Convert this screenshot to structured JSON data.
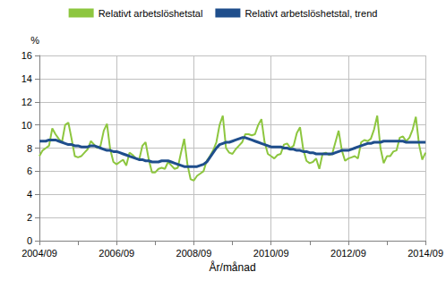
{
  "chart_data": {
    "type": "line",
    "xlabel": "År/månad",
    "ylabel": "%",
    "categories": [
      "2004/09",
      null,
      null,
      null,
      null,
      null,
      null,
      null,
      null,
      null,
      null,
      null,
      null,
      null,
      null,
      null,
      null,
      null,
      null,
      null,
      null,
      null,
      null,
      null,
      "2006/09",
      null,
      null,
      null,
      null,
      null,
      null,
      null,
      null,
      null,
      null,
      null,
      null,
      null,
      null,
      null,
      null,
      null,
      null,
      null,
      null,
      null,
      null,
      null,
      "2008/09",
      null,
      null,
      null,
      null,
      null,
      null,
      null,
      null,
      null,
      null,
      null,
      null,
      null,
      null,
      null,
      null,
      null,
      null,
      null,
      null,
      null,
      null,
      null,
      "2010/09",
      null,
      null,
      null,
      null,
      null,
      null,
      null,
      null,
      null,
      null,
      null,
      null,
      null,
      null,
      null,
      null,
      null,
      null,
      null,
      null,
      null,
      null,
      null,
      "2012/09",
      null,
      null,
      null,
      null,
      null,
      null,
      null,
      null,
      null,
      null,
      null,
      null,
      null,
      null,
      null,
      null,
      null,
      null,
      null,
      null,
      null,
      null,
      null,
      "2014/09"
    ],
    "series": [
      {
        "name": "Relativt arbetslöshetstal",
        "color": "#8dc63f",
        "values": [
          7.3,
          7.8,
          8.0,
          8.2,
          9.7,
          9.2,
          8.8,
          8.5,
          10.0,
          10.2,
          8.8,
          7.3,
          7.2,
          7.3,
          7.6,
          7.9,
          8.6,
          8.3,
          8.0,
          8.2,
          9.5,
          10.1,
          7.9,
          6.8,
          6.6,
          6.8,
          7.0,
          6.5,
          7.6,
          7.4,
          7.1,
          7.0,
          8.2,
          8.5,
          7.0,
          5.9,
          5.9,
          6.2,
          6.3,
          6.2,
          6.8,
          6.5,
          6.2,
          6.3,
          7.6,
          8.8,
          6.6,
          5.3,
          5.2,
          5.6,
          5.8,
          6.0,
          6.9,
          7.3,
          7.8,
          8.5,
          10.0,
          10.8,
          8.0,
          7.6,
          7.5,
          7.9,
          8.2,
          8.5,
          9.2,
          9.2,
          9.1,
          9.2,
          10.0,
          10.5,
          8.5,
          7.5,
          7.3,
          7.1,
          7.4,
          7.5,
          8.3,
          8.4,
          8.0,
          8.2,
          9.3,
          9.8,
          7.9,
          6.9,
          6.7,
          6.8,
          7.1,
          6.2,
          7.5,
          7.6,
          7.4,
          7.5,
          8.5,
          9.5,
          7.8,
          6.9,
          7.1,
          7.2,
          7.3,
          7.1,
          8.5,
          8.7,
          8.6,
          8.8,
          9.6,
          10.8,
          8.0,
          6.7,
          7.3,
          7.3,
          7.7,
          7.8,
          8.9,
          9.0,
          8.6,
          8.9,
          9.6,
          10.7,
          8.3,
          7.0,
          7.6
        ]
      },
      {
        "name": "Relativt arbetslöshetstal, trend",
        "color": "#1f4e8c",
        "values": [
          8.6,
          8.6,
          8.6,
          8.7,
          8.7,
          8.7,
          8.6,
          8.5,
          8.4,
          8.3,
          8.3,
          8.2,
          8.2,
          8.1,
          8.1,
          8.1,
          8.2,
          8.2,
          8.1,
          8.0,
          7.9,
          7.8,
          7.8,
          7.7,
          7.7,
          7.6,
          7.5,
          7.4,
          7.3,
          7.2,
          7.1,
          7.0,
          7.0,
          6.9,
          6.9,
          6.8,
          6.8,
          6.8,
          6.9,
          6.9,
          6.9,
          6.8,
          6.7,
          6.6,
          6.5,
          6.4,
          6.4,
          6.4,
          6.4,
          6.4,
          6.5,
          6.6,
          6.8,
          7.2,
          7.6,
          8.0,
          8.3,
          8.4,
          8.5,
          8.5,
          8.6,
          8.7,
          8.8,
          8.9,
          8.9,
          8.8,
          8.7,
          8.6,
          8.5,
          8.4,
          8.3,
          8.2,
          8.1,
          8.1,
          8.1,
          8.1,
          8.0,
          8.0,
          7.9,
          7.9,
          7.8,
          7.8,
          7.7,
          7.7,
          7.6,
          7.6,
          7.5,
          7.5,
          7.5,
          7.5,
          7.5,
          7.5,
          7.6,
          7.7,
          7.8,
          7.8,
          7.8,
          7.9,
          8.0,
          8.1,
          8.2,
          8.3,
          8.4,
          8.4,
          8.5,
          8.5,
          8.5,
          8.6,
          8.6,
          8.6,
          8.6,
          8.6,
          8.6,
          8.6,
          8.5,
          8.5,
          8.5,
          8.5,
          8.5,
          8.5,
          8.5
        ]
      }
    ],
    "ylim": [
      0,
      16
    ],
    "yticks": [
      0,
      2,
      4,
      6,
      8,
      10,
      12,
      14,
      16
    ],
    "grid": true,
    "legend": "top"
  }
}
